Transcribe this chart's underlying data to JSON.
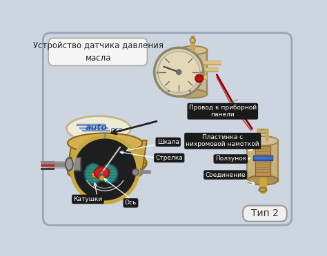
{
  "background_color": "#cdd5e0",
  "border_color": "#9aa5b8",
  "box_title": "Устройство датчика давления\nмасла",
  "label_провод": "Провод к приборной\nпанели",
  "label_пластинка": "Пластинка с\nнихромовой намоткой",
  "label_ползунок": "Ползунок",
  "label_шкала": "Шкала",
  "label_стрелка": "Стрелка",
  "label_соединение": "Соединение",
  "label_катушки": "Катушки",
  "label_ось": "Ось",
  "label_тип": "Тип 2",
  "label_color": "#ffffff",
  "label_bg": "#1a1a1a",
  "gauge_color": "#c8b898",
  "gauge_face": "#ddd0b0",
  "gold_color": "#c8a840",
  "dark_dial": "#1a1a1a",
  "teal_color": "#2a8a80",
  "red_color": "#cc2222"
}
